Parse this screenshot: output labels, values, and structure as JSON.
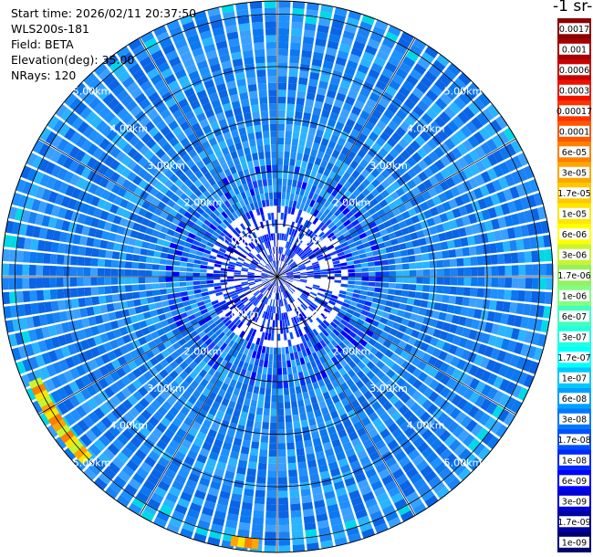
{
  "info": {
    "start_time": "Start time: 2026/02/11 20:37:50",
    "instrument": "WLS200s-181",
    "field": "Field: BETA",
    "elevation": "Elevation(deg): 35.00",
    "nrays": "NRays: 120"
  },
  "colorbar": {
    "title": "-1 sr-",
    "labels": [
      "0.0017",
      "0.001",
      "0.0006",
      "0.0003",
      "0.00017",
      "0.0001",
      "6e-05",
      "3e-05",
      "1.7e-05",
      "1e-05",
      "6e-06",
      "3e-06",
      "1.7e-06",
      "1e-06",
      "6e-07",
      "3e-07",
      "1.7e-07",
      "1e-07",
      "6e-08",
      "3e-08",
      "1.7e-08",
      "1e-08",
      "6e-09",
      "3e-09",
      "1.7e-09",
      "1e-09"
    ],
    "colors": [
      "#8b0000",
      "#a50000",
      "#c80000",
      "#ee1100",
      "#ff3300",
      "#ff5500",
      "#ff7f00",
      "#ffa500",
      "#ffc800",
      "#ffe600",
      "#ffff00",
      "#c8f530",
      "#96f060",
      "#80ff80",
      "#40ffc0",
      "#20ffe0",
      "#00ffff",
      "#00c8ff",
      "#00a0ff",
      "#0078ff",
      "#0050ff",
      "#0028ff",
      "#0000ff",
      "#0000d0",
      "#0000a0",
      "#000070"
    ]
  },
  "chart_data": {
    "type": "ppi",
    "field": "BETA",
    "elevation_deg": 35.0,
    "nrays": 120,
    "range_unit": "km",
    "max_range_km": 5.25,
    "range_rings_km": [
      1,
      2,
      3,
      4,
      5
    ],
    "ring_labels": [
      "1.00km",
      "2.00km",
      "3.00km",
      "4.00km",
      "5.00km"
    ],
    "ray_step_deg": 3,
    "spoke_step_deg": 30,
    "high_backscatter_sectors": [
      {
        "azimuth_deg_from": 184,
        "azimuth_deg_to": 190,
        "range_km_from": 5.0,
        "range_km_to": 5.2,
        "value": 3e-06
      },
      {
        "azimuth_deg_from": 226,
        "azimuth_deg_to": 246,
        "range_km_from": 4.9,
        "range_km_to": 5.15,
        "value": 1e-05
      }
    ]
  }
}
